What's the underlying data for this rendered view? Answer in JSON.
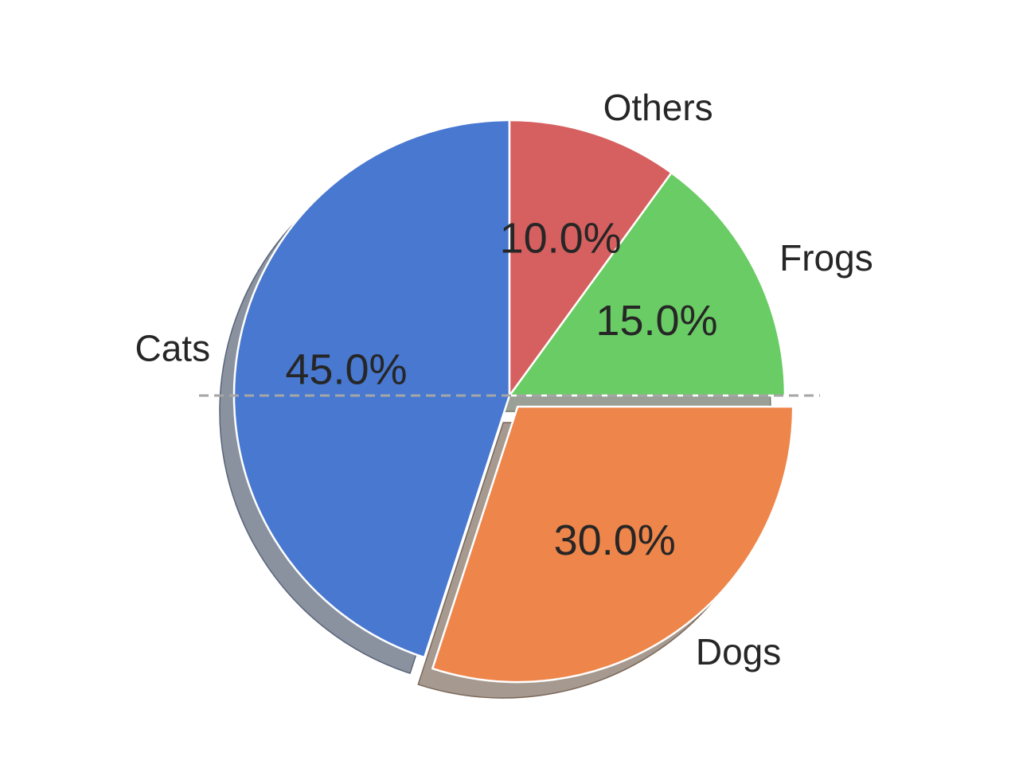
{
  "chart_data": {
    "type": "pie",
    "title": "",
    "start_angle_deg": 90,
    "direction": "counterclockwise",
    "shadow": true,
    "reference_line": {
      "orientation": "horizontal",
      "style": "dashed"
    },
    "slices": [
      {
        "label": "Cats",
        "value": 45,
        "pct_label": "45.0%",
        "color": "#4878d0",
        "shadow_color": "#8a92a0",
        "shadow_edge": "#5a6478",
        "exploded": false
      },
      {
        "label": "Dogs",
        "value": 30,
        "pct_label": "30.0%",
        "color": "#ee854a",
        "shadow_color": "#a69a90",
        "shadow_edge": "#7a6658",
        "exploded": true,
        "explode": 0.05
      },
      {
        "label": "Frogs",
        "value": 15,
        "pct_label": "15.0%",
        "color": "#6acc64",
        "shadow_color": "#9aa095",
        "shadow_edge": "#6e7a68",
        "exploded": false
      },
      {
        "label": "Others",
        "value": 10,
        "pct_label": "10.0%",
        "color": "#d65f5f",
        "shadow_color": "#9e9090",
        "shadow_edge": "#7a6262",
        "exploded": false
      }
    ]
  }
}
